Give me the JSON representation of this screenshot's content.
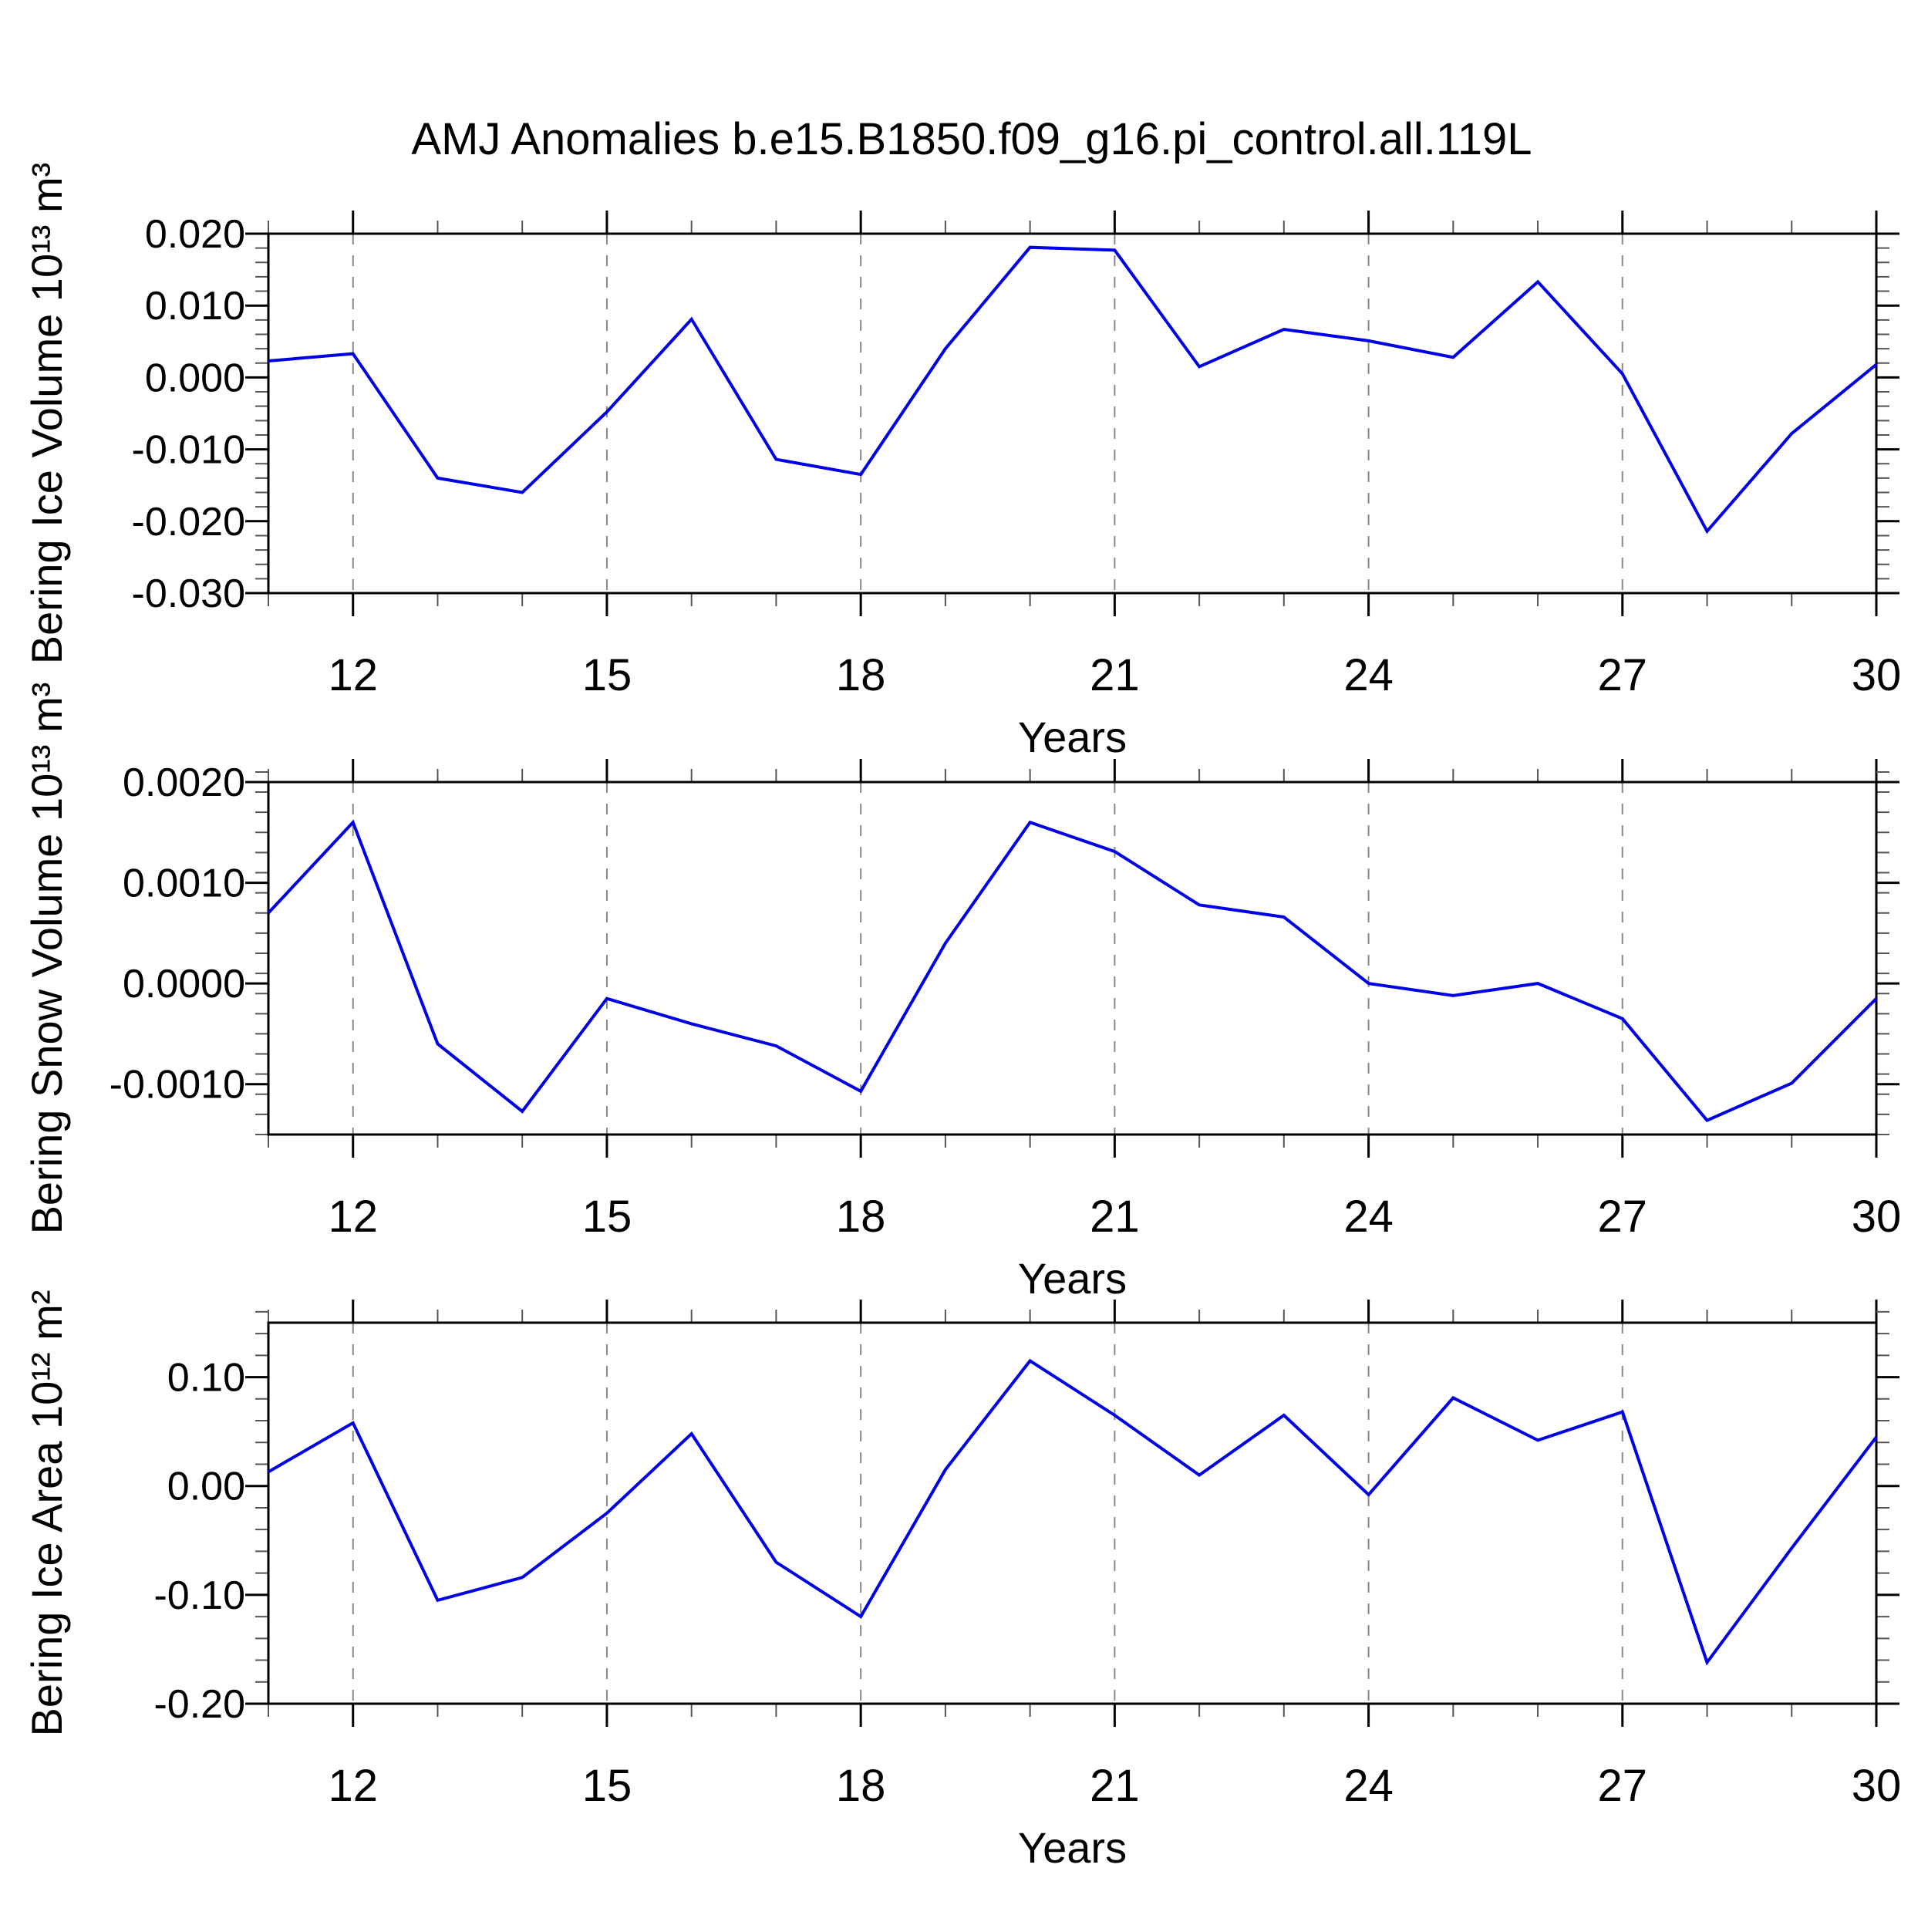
{
  "title": "AMJ Anomalies b.e15.B1850.f09_g16.pi_control.all.119L",
  "colors": {
    "line": "#0000e8",
    "axis": "#000000",
    "grid": "#888888",
    "minor_tick": "#555555",
    "background": "#ffffff"
  },
  "chart_data": {
    "type": "line",
    "xlabel": "Years",
    "xlim": [
      11,
      30
    ],
    "x": [
      11,
      12,
      13,
      14,
      15,
      16,
      17,
      18,
      19,
      20,
      21,
      22,
      23,
      24,
      25,
      26,
      27,
      28,
      29,
      30
    ],
    "x_major_ticks": [
      12,
      15,
      18,
      21,
      24,
      27,
      30
    ],
    "x_major_labels": [
      "12",
      "15",
      "18",
      "21",
      "24",
      "27",
      "30"
    ],
    "x_gridlines": [
      12,
      15,
      18,
      21,
      24,
      27
    ],
    "grid_style": "dashed-vertical",
    "legend": "none",
    "panels": [
      {
        "name": "bering-ice-volume",
        "ylabel": "Bering Ice Volume 10¹³ m³",
        "ylim": [
          -0.03,
          0.02
        ],
        "y_major_values": [
          0.02,
          0.01,
          0.0,
          -0.01,
          -0.02,
          -0.03
        ],
        "y_major_labels": [
          "0.020",
          "0.010",
          "0.000",
          "-0.010",
          "-0.020",
          "-0.030"
        ],
        "y_minor_step": 0.002,
        "values": [
          0.0023,
          0.0033,
          -0.014,
          -0.016,
          -0.0048,
          0.0081,
          -0.0114,
          -0.0135,
          0.004,
          0.0181,
          0.0177,
          0.0015,
          0.0067,
          0.0051,
          0.0028,
          0.0133,
          0.0005,
          -0.0214,
          -0.0078,
          0.0018
        ]
      },
      {
        "name": "bering-snow-volume",
        "ylabel": "Bering Snow Volume 10¹³ m³",
        "ylim": [
          -0.0015,
          0.002
        ],
        "y_major_values": [
          0.002,
          0.001,
          0.0,
          -0.001
        ],
        "y_major_labels": [
          "0.0020",
          "0.0010",
          "0.0000",
          "-0.0010"
        ],
        "y_minor_step": 0.0002,
        "values": [
          0.0007,
          0.0016,
          -0.0006,
          -0.00127,
          -0.00015,
          -0.0004,
          -0.00062,
          -0.00107,
          0.0004,
          0.0016,
          0.00131,
          0.00078,
          0.00066,
          0.0,
          -0.00012,
          0.0,
          -0.00035,
          -0.00136,
          -0.00099,
          -0.00015
        ]
      },
      {
        "name": "bering-ice-area",
        "ylabel": "Bering Ice Area 10¹² m²",
        "ylim": [
          -0.2,
          0.15
        ],
        "y_major_values": [
          0.1,
          0.0,
          -0.1,
          -0.2
        ],
        "y_major_labels": [
          "0.10",
          "0.00",
          "-0.10",
          "-0.20"
        ],
        "y_minor_step": 0.02,
        "values": [
          0.013,
          0.058,
          -0.105,
          -0.084,
          -0.025,
          0.048,
          -0.07,
          -0.12,
          0.015,
          0.115,
          0.065,
          0.01,
          0.065,
          -0.008,
          0.081,
          0.042,
          0.068,
          -0.162,
          -0.057,
          0.045
        ]
      }
    ]
  }
}
